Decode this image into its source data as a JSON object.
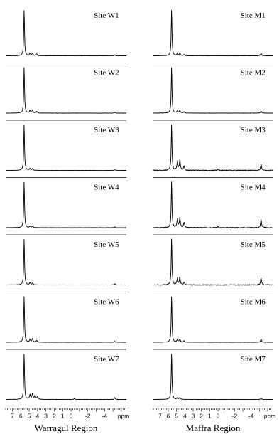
{
  "chart_data": [
    {
      "type": "line",
      "region": "Warragul Region",
      "xlabel": "ppm",
      "xlim": [
        7.8,
        -6.6
      ],
      "x_ticks": [
        7,
        6,
        5,
        4,
        3,
        2,
        1,
        0,
        -2,
        -4
      ],
      "x_tick_labels": [
        "7",
        "6",
        "5",
        "4",
        "3",
        "2",
        "1",
        "0",
        "-2",
        "-4"
      ],
      "panels": [
        {
          "label": "Site W1",
          "peaks": [
            {
              "x": 5.6,
              "h": 1.0
            },
            {
              "x": 4.9,
              "h": 0.05
            },
            {
              "x": 4.6,
              "h": 0.06
            },
            {
              "x": 4.1,
              "h": 0.04
            },
            {
              "x": -5.2,
              "h": 0.02
            }
          ]
        },
        {
          "label": "Site W2",
          "peaks": [
            {
              "x": 5.6,
              "h": 1.0
            },
            {
              "x": 4.9,
              "h": 0.05
            },
            {
              "x": 4.6,
              "h": 0.07
            },
            {
              "x": 4.1,
              "h": 0.04
            },
            {
              "x": -5.2,
              "h": 0.02
            }
          ]
        },
        {
          "label": "Site W3",
          "peaks": [
            {
              "x": 5.6,
              "h": 1.0
            },
            {
              "x": 4.9,
              "h": 0.04
            },
            {
              "x": 4.6,
              "h": 0.04
            },
            {
              "x": -5.2,
              "h": 0.02
            }
          ]
        },
        {
          "label": "Site W4",
          "peaks": [
            {
              "x": 5.6,
              "h": 1.0
            },
            {
              "x": 4.9,
              "h": 0.03
            },
            {
              "x": 4.6,
              "h": 0.03
            },
            {
              "x": -5.2,
              "h": 0.02
            }
          ]
        },
        {
          "label": "Site W5",
          "peaks": [
            {
              "x": 5.6,
              "h": 1.0
            },
            {
              "x": 4.9,
              "h": 0.05
            },
            {
              "x": 4.6,
              "h": 0.04
            },
            {
              "x": -5.2,
              "h": 0.03
            }
          ]
        },
        {
          "label": "Site W6",
          "peaks": [
            {
              "x": 5.6,
              "h": 1.0
            },
            {
              "x": 4.9,
              "h": 0.06
            },
            {
              "x": 4.6,
              "h": 0.08
            },
            {
              "x": 4.1,
              "h": 0.04
            },
            {
              "x": -5.2,
              "h": 0.02
            }
          ]
        },
        {
          "label": "Site W7",
          "peaks": [
            {
              "x": 5.6,
              "h": 1.0
            },
            {
              "x": 4.9,
              "h": 0.1
            },
            {
              "x": 4.6,
              "h": 0.13
            },
            {
              "x": 4.3,
              "h": 0.09
            },
            {
              "x": 4.0,
              "h": 0.06
            },
            {
              "x": -0.4,
              "h": 0.02
            },
            {
              "x": -5.2,
              "h": 0.04
            }
          ]
        }
      ]
    },
    {
      "type": "line",
      "region": "Maffra Region",
      "xlabel": "ppm",
      "xlim": [
        7.8,
        -6.6
      ],
      "x_ticks": [
        7,
        6,
        5,
        4,
        3,
        2,
        1,
        0,
        -2,
        -4
      ],
      "x_tick_labels": [
        "7",
        "6",
        "5",
        "4",
        "3",
        "2",
        "1",
        "0",
        "-2",
        "-4"
      ],
      "panels": [
        {
          "label": "Site M1",
          "peaks": [
            {
              "x": 5.6,
              "h": 1.0
            },
            {
              "x": 4.9,
              "h": 0.06
            },
            {
              "x": 4.6,
              "h": 0.06
            },
            {
              "x": 4.1,
              "h": 0.03
            },
            {
              "x": -5.2,
              "h": 0.06
            }
          ]
        },
        {
          "label": "Site M2",
          "peaks": [
            {
              "x": 5.6,
              "h": 1.0
            },
            {
              "x": 4.9,
              "h": 0.06
            },
            {
              "x": 4.6,
              "h": 0.06
            },
            {
              "x": 4.1,
              "h": 0.03
            },
            {
              "x": -5.2,
              "h": 0.05
            }
          ]
        },
        {
          "label": "Site M3",
          "peaks": [
            {
              "x": 5.6,
              "h": 1.0
            },
            {
              "x": 4.9,
              "h": 0.2
            },
            {
              "x": 4.6,
              "h": 0.22
            },
            {
              "x": 4.1,
              "h": 0.1
            },
            {
              "x": 0.0,
              "h": 0.03
            },
            {
              "x": -5.2,
              "h": 0.14
            }
          ]
        },
        {
          "label": "Site M4",
          "peaks": [
            {
              "x": 5.6,
              "h": 1.0
            },
            {
              "x": 4.9,
              "h": 0.2
            },
            {
              "x": 4.6,
              "h": 0.22
            },
            {
              "x": 4.1,
              "h": 0.11
            },
            {
              "x": 0.0,
              "h": 0.03
            },
            {
              "x": -5.2,
              "h": 0.18
            }
          ]
        },
        {
          "label": "Site M5",
          "peaks": [
            {
              "x": 5.6,
              "h": 1.0
            },
            {
              "x": 4.9,
              "h": 0.15
            },
            {
              "x": 4.6,
              "h": 0.16
            },
            {
              "x": 4.1,
              "h": 0.06
            },
            {
              "x": -5.2,
              "h": 0.16
            }
          ]
        },
        {
          "label": "Site M6",
          "peaks": [
            {
              "x": 5.6,
              "h": 1.0
            },
            {
              "x": 4.9,
              "h": 0.07
            },
            {
              "x": 4.6,
              "h": 0.07
            },
            {
              "x": 4.1,
              "h": 0.03
            },
            {
              "x": -5.2,
              "h": 0.07
            }
          ]
        },
        {
          "label": "Site M7",
          "peaks": [
            {
              "x": 5.6,
              "h": 1.0
            },
            {
              "x": 4.9,
              "h": 0.04
            },
            {
              "x": 4.6,
              "h": 0.04
            },
            {
              "x": -5.2,
              "h": 0.03
            }
          ]
        }
      ]
    }
  ]
}
